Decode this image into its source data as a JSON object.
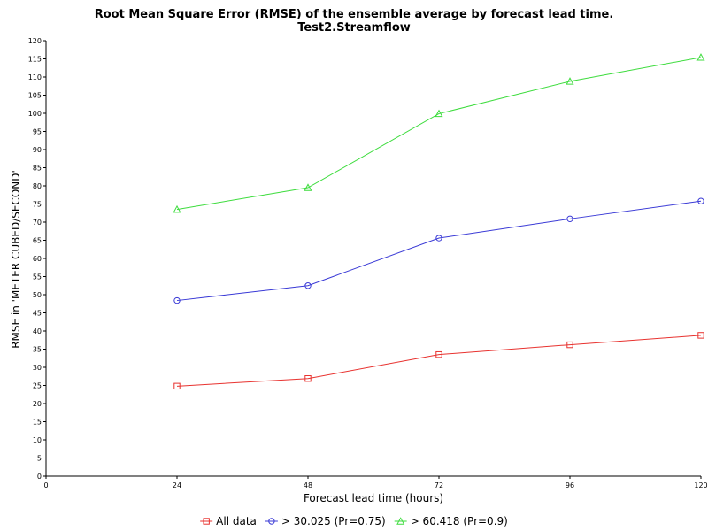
{
  "chart_data": {
    "type": "line",
    "title": "Root Mean Square Error (RMSE) of the ensemble average by forecast lead time.",
    "subtitle": "Test2.Streamflow",
    "xlabel": "Forecast lead time (hours)",
    "ylabel": "RMSE in 'METER CUBED/SECOND'",
    "xlim": [
      0,
      120
    ],
    "ylim": [
      0,
      120
    ],
    "x_ticks": [
      0,
      24,
      48,
      72,
      96,
      120
    ],
    "y_tick_step": 5,
    "grid": false,
    "legend_position": "bottom-center",
    "x": [
      24,
      48,
      72,
      96,
      120
    ],
    "series": [
      {
        "name": "All data",
        "marker": "square",
        "color": "#e8322f",
        "values": [
          24.8,
          26.9,
          33.5,
          36.2,
          38.8
        ]
      },
      {
        "name": "> 30.025 (Pr=0.75)",
        "marker": "circle",
        "color": "#3a3ad6",
        "values": [
          48.4,
          52.5,
          65.6,
          70.9,
          75.8
        ]
      },
      {
        "name": "> 60.418 (Pr=0.9)",
        "marker": "triangle",
        "color": "#3ddc3d",
        "values": [
          73.5,
          79.5,
          99.9,
          108.8,
          115.4
        ]
      }
    ]
  }
}
